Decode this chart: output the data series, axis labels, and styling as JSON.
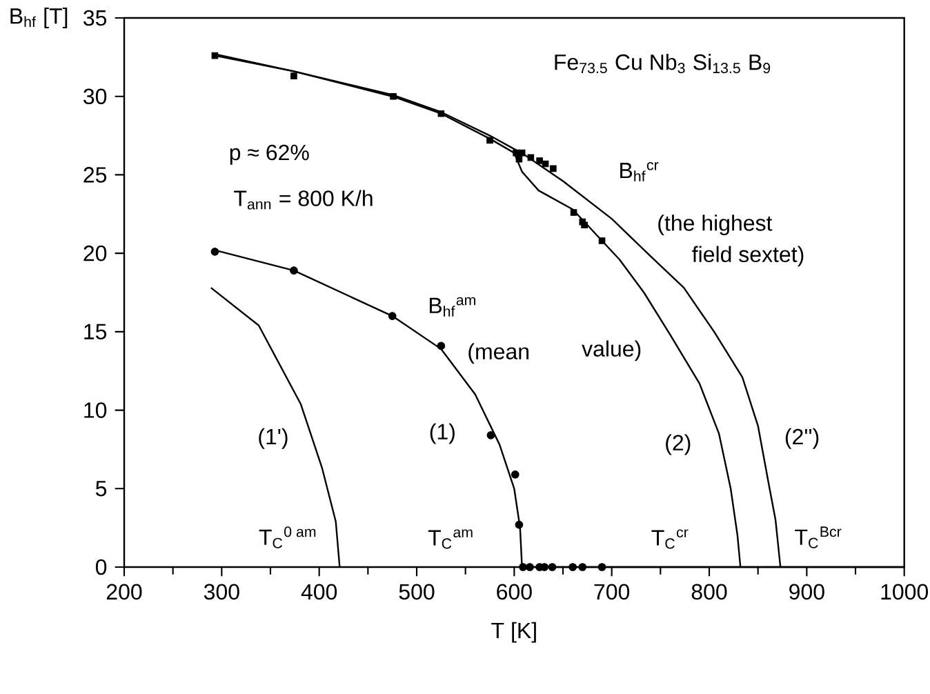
{
  "chart_data": {
    "type": "line",
    "xlabel": "T [K]",
    "ylabel": "B$_{hf}$ [T]",
    "xlim": [
      200,
      1000
    ],
    "xticks": [
      200,
      300,
      400,
      500,
      600,
      700,
      800,
      900,
      1000
    ],
    "ylim": [
      0,
      35
    ],
    "yticks": [
      0,
      5,
      10,
      15,
      20,
      25,
      30,
      35
    ],
    "grid": false,
    "series": [
      {
        "type": "scatter",
        "marker": "square",
        "color": "#000000",
        "x": [
          293,
          374,
          476,
          525,
          575,
          602,
          608,
          605,
          617,
          626,
          632,
          640,
          661,
          670,
          672,
          690
        ],
        "values": [
          32.6,
          31.3,
          30.0,
          28.9,
          27.2,
          26.4,
          26.4,
          26.0,
          26.1,
          25.9,
          25.7,
          25.4,
          22.6,
          22.0,
          21.8,
          20.8
        ]
      },
      {
        "type": "scatter",
        "marker": "circle",
        "color": "#000000",
        "x": [
          293,
          374,
          475,
          525,
          576,
          601,
          605,
          609,
          616,
          626,
          631,
          639,
          660,
          670,
          690
        ],
        "values": [
          20.1,
          18.9,
          16.0,
          14.1,
          8.4,
          5.9,
          2.7,
          0,
          0,
          0,
          0,
          0,
          0,
          0,
          0
        ]
      },
      {
        "marker": "none",
        "color": "#000000",
        "x": [
          293,
          374,
          475,
          525,
          560,
          585,
          600,
          606,
          608,
          1000
        ],
        "values": [
          20.2,
          18.9,
          16.0,
          13.9,
          11.0,
          7.8,
          5.0,
          2.5,
          0,
          0
        ]
      },
      {
        "marker": "none",
        "color": "#000000",
        "x": [
          289,
          338,
          381,
          403,
          417,
          421
        ],
        "values": [
          17.8,
          15.4,
          10.4,
          6.3,
          2.9,
          0
        ]
      },
      {
        "marker": "none",
        "color": "#000000",
        "x": [
          293,
          374,
          475,
          525,
          575,
          600,
          608,
          625,
          660,
          690,
          708,
          733,
          760,
          790,
          810,
          822,
          829,
          832
        ],
        "values": [
          32.7,
          31.6,
          30.0,
          28.9,
          27.3,
          26.4,
          25.2,
          24.0,
          22.8,
          20.8,
          19.6,
          17.5,
          14.8,
          11.7,
          8.5,
          5.0,
          2.0,
          0
        ]
      },
      {
        "marker": "none",
        "color": "#000000",
        "x": [
          293,
          374,
          475,
          525,
          575,
          610,
          650,
          700,
          740,
          774,
          805,
          834,
          850,
          861,
          868,
          873
        ],
        "values": [
          32.6,
          31.6,
          30.1,
          29.0,
          27.5,
          26.3,
          24.6,
          22.2,
          19.8,
          17.8,
          15.0,
          12.1,
          9.0,
          5.3,
          3.0,
          0
        ]
      }
    ],
    "annotations": [
      "Fe$_{73.5}$ Cu Nb$_{3}$ Si$_{13.5}$ B$_{9}$",
      "p ≈ 62%",
      "T$_{ann}$ = 800 K/h",
      "B$_{hf}$$^{cr}$",
      "(the highest",
      "field sextet)",
      "B$_{hf}$$^{am}$",
      "(mean",
      "value)",
      "(1')",
      "(1)",
      "(2)",
      "(2'')",
      "T$_{C}$$^{0 am}$",
      "T$_{C}$$^{am}$",
      "T$_{C}$$^{cr}$",
      "T$_{C}$$^{Bcr}$"
    ]
  }
}
